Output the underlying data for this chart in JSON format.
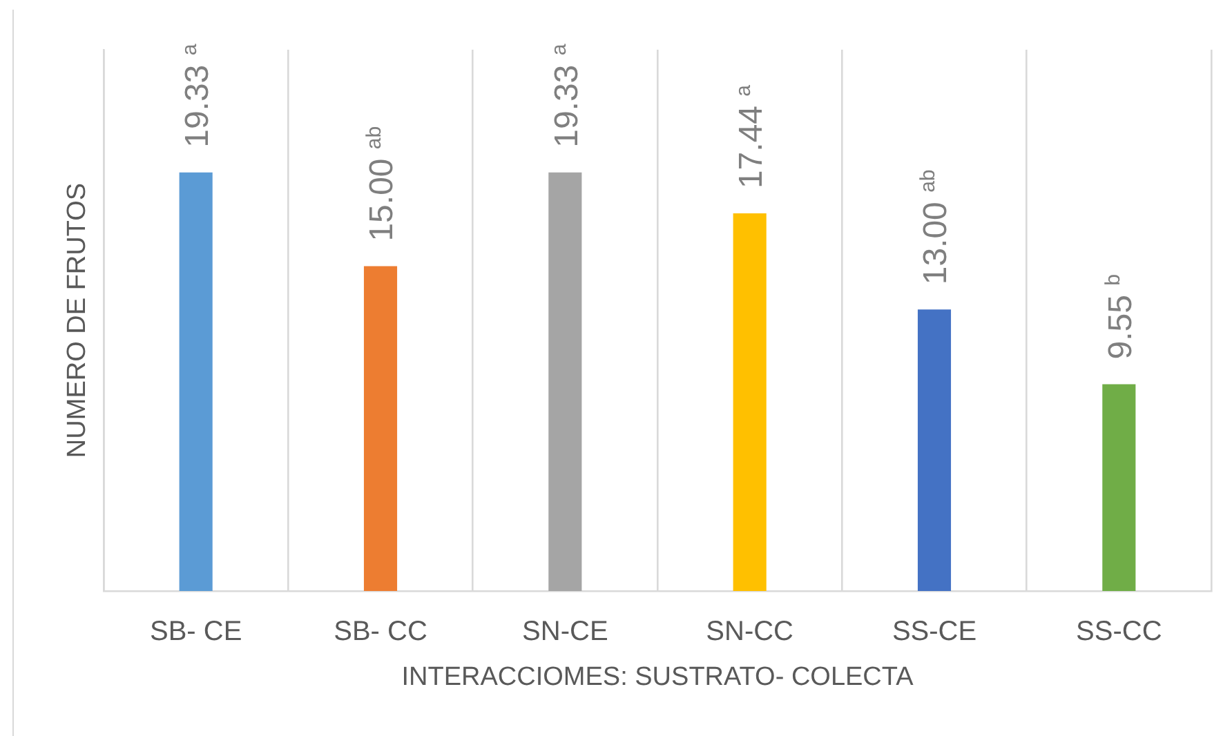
{
  "chart_data": {
    "type": "bar",
    "xlabel": "INTERACCIOMES: SUSTRATO- COLECTA",
    "ylabel": "NUMERO DE FRUTOS",
    "categories": [
      "SB- CE",
      "SB- CC",
      "SN-CE",
      "SN-CC",
      "SS-CE",
      "SS-CC"
    ],
    "values": [
      19.33,
      15.0,
      19.33,
      17.44,
      13.0,
      9.55
    ],
    "colors": [
      "#5b9bd5",
      "#ed7d31",
      "#a5a5a5",
      "#ffc000",
      "#4472c4",
      "#70ad47"
    ],
    "value_labels": [
      "19.33 $^{a}$",
      "15.00 $^{ab}$",
      "19.33 $^{a}$",
      "17.44 $^{a}$",
      "13.00 $^{ab}$",
      "9.55 $^{b}$"
    ],
    "ylim": [
      0,
      25
    ],
    "grid": "x",
    "tick_labels": "x"
  }
}
